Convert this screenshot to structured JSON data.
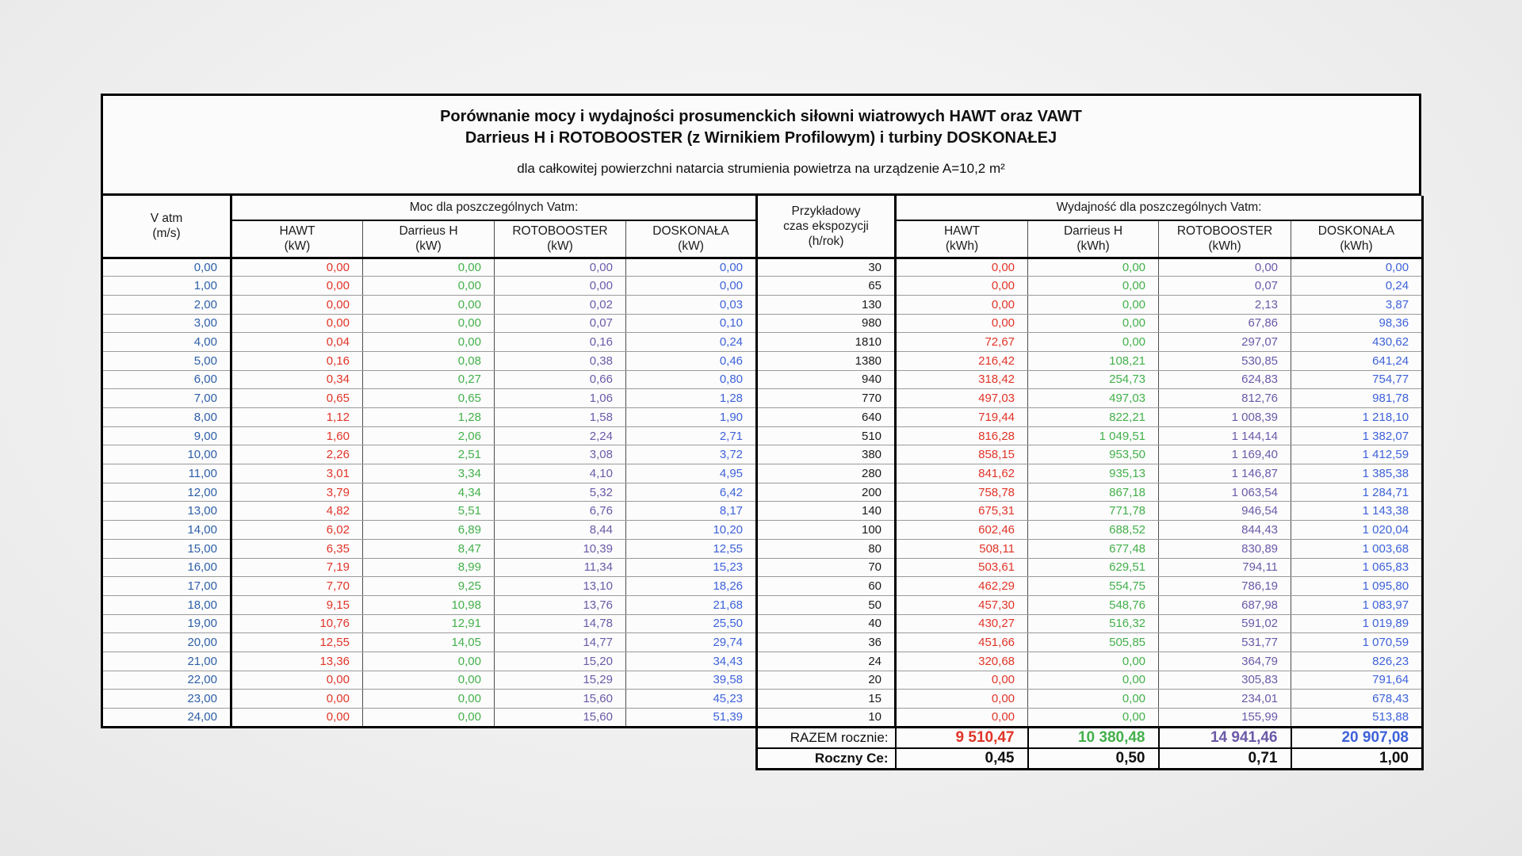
{
  "title": {
    "line1": "Porównanie mocy i wydajności prosumenckich siłowni wiatrowych HAWT oraz VAWT",
    "line2": "Darrieus H i ROTOBOOSTER (z Wirnikiem Profilowym) i turbiny DOSKONAŁEJ",
    "line3": "dla całkowitej powierzchni natarcia strumienia powietrza na urządzenie A=10,2 m²"
  },
  "table": {
    "group_headers": {
      "power": "Moc dla poszczególnych Vatm:",
      "yield": "Wydajność dla poszczególnych Vatm:"
    },
    "v_header": [
      "V atm",
      "(m/s)"
    ],
    "exposure_header": [
      "Przykładowy",
      "czas ekspozycji",
      "(h/rok)"
    ],
    "power_columns": [
      [
        "HAWT",
        "(kW)"
      ],
      [
        "Darrieus H",
        "(kW)"
      ],
      [
        "ROTOBOOSTER",
        "(kW)"
      ],
      [
        "DOSKONAŁA",
        "(kW)"
      ]
    ],
    "yield_columns": [
      [
        "HAWT",
        "(kWh)"
      ],
      [
        "Darrieus H",
        "(kWh)"
      ],
      [
        "ROTOBOOSTER",
        "(kWh)"
      ],
      [
        "DOSKONAŁA",
        "(kWh)"
      ]
    ],
    "column_keys": [
      "v-atm",
      "hawt-kw",
      "darrieus-kw",
      "rotobooster-kw",
      "doskonala-kw",
      "czas-ekspozycji",
      "hawt-kwh",
      "darrieus-kwh",
      "rotobooster-kwh",
      "doskonala-kwh"
    ],
    "colors": {
      "v": "#2e5fa8",
      "hawt": "#e03428",
      "darrieus": "#43b04a",
      "roto": "#6b5aa8",
      "dosk": "#3e62d9",
      "hours": "#1a1a1a"
    },
    "rows": [
      [
        "0,00",
        "0,00",
        "0,00",
        "0,00",
        "0,00",
        "30",
        "0,00",
        "0,00",
        "0,00",
        "0,00"
      ],
      [
        "1,00",
        "0,00",
        "0,00",
        "0,00",
        "0,00",
        "65",
        "0,00",
        "0,00",
        "0,07",
        "0,24"
      ],
      [
        "2,00",
        "0,00",
        "0,00",
        "0,02",
        "0,03",
        "130",
        "0,00",
        "0,00",
        "2,13",
        "3,87"
      ],
      [
        "3,00",
        "0,00",
        "0,00",
        "0,07",
        "0,10",
        "980",
        "0,00",
        "0,00",
        "67,86",
        "98,36"
      ],
      [
        "4,00",
        "0,04",
        "0,00",
        "0,16",
        "0,24",
        "1810",
        "72,67",
        "0,00",
        "297,07",
        "430,62"
      ],
      [
        "5,00",
        "0,16",
        "0,08",
        "0,38",
        "0,46",
        "1380",
        "216,42",
        "108,21",
        "530,85",
        "641,24"
      ],
      [
        "6,00",
        "0,34",
        "0,27",
        "0,66",
        "0,80",
        "940",
        "318,42",
        "254,73",
        "624,83",
        "754,77"
      ],
      [
        "7,00",
        "0,65",
        "0,65",
        "1,06",
        "1,28",
        "770",
        "497,03",
        "497,03",
        "812,76",
        "981,78"
      ],
      [
        "8,00",
        "1,12",
        "1,28",
        "1,58",
        "1,90",
        "640",
        "719,44",
        "822,21",
        "1 008,39",
        "1 218,10"
      ],
      [
        "9,00",
        "1,60",
        "2,06",
        "2,24",
        "2,71",
        "510",
        "816,28",
        "1 049,51",
        "1 144,14",
        "1 382,07"
      ],
      [
        "10,00",
        "2,26",
        "2,51",
        "3,08",
        "3,72",
        "380",
        "858,15",
        "953,50",
        "1 169,40",
        "1 412,59"
      ],
      [
        "11,00",
        "3,01",
        "3,34",
        "4,10",
        "4,95",
        "280",
        "841,62",
        "935,13",
        "1 146,87",
        "1 385,38"
      ],
      [
        "12,00",
        "3,79",
        "4,34",
        "5,32",
        "6,42",
        "200",
        "758,78",
        "867,18",
        "1 063,54",
        "1 284,71"
      ],
      [
        "13,00",
        "4,82",
        "5,51",
        "6,76",
        "8,17",
        "140",
        "675,31",
        "771,78",
        "946,54",
        "1 143,38"
      ],
      [
        "14,00",
        "6,02",
        "6,89",
        "8,44",
        "10,20",
        "100",
        "602,46",
        "688,52",
        "844,43",
        "1 020,04"
      ],
      [
        "15,00",
        "6,35",
        "8,47",
        "10,39",
        "12,55",
        "80",
        "508,11",
        "677,48",
        "830,89",
        "1 003,68"
      ],
      [
        "16,00",
        "7,19",
        "8,99",
        "11,34",
        "15,23",
        "70",
        "503,61",
        "629,51",
        "794,11",
        "1 065,83"
      ],
      [
        "17,00",
        "7,70",
        "9,25",
        "13,10",
        "18,26",
        "60",
        "462,29",
        "554,75",
        "786,19",
        "1 095,80"
      ],
      [
        "18,00",
        "9,15",
        "10,98",
        "13,76",
        "21,68",
        "50",
        "457,30",
        "548,76",
        "687,98",
        "1 083,97"
      ],
      [
        "19,00",
        "10,76",
        "12,91",
        "14,78",
        "25,50",
        "40",
        "430,27",
        "516,32",
        "591,02",
        "1 019,89"
      ],
      [
        "20,00",
        "12,55",
        "14,05",
        "14,77",
        "29,74",
        "36",
        "451,66",
        "505,85",
        "531,77",
        "1 070,59"
      ],
      [
        "21,00",
        "13,36",
        "0,00",
        "15,20",
        "34,43",
        "24",
        "320,68",
        "0,00",
        "364,79",
        "826,23"
      ],
      [
        "22,00",
        "0,00",
        "0,00",
        "15,29",
        "39,58",
        "20",
        "0,00",
        "0,00",
        "305,83",
        "791,64"
      ],
      [
        "23,00",
        "0,00",
        "0,00",
        "15,60",
        "45,23",
        "15",
        "0,00",
        "0,00",
        "234,01",
        "678,43"
      ],
      [
        "24,00",
        "0,00",
        "0,00",
        "15,60",
        "51,39",
        "10",
        "0,00",
        "0,00",
        "155,99",
        "513,88"
      ]
    ],
    "footer": {
      "razem_label": "RAZEM rocznie:",
      "razem_values": [
        "9 510,47",
        "10 380,48",
        "14 941,46",
        "20 907,08"
      ],
      "ce_label": "Roczny Ce:",
      "ce_values": [
        "0,45",
        "0,50",
        "0,71",
        "1,00"
      ]
    }
  }
}
